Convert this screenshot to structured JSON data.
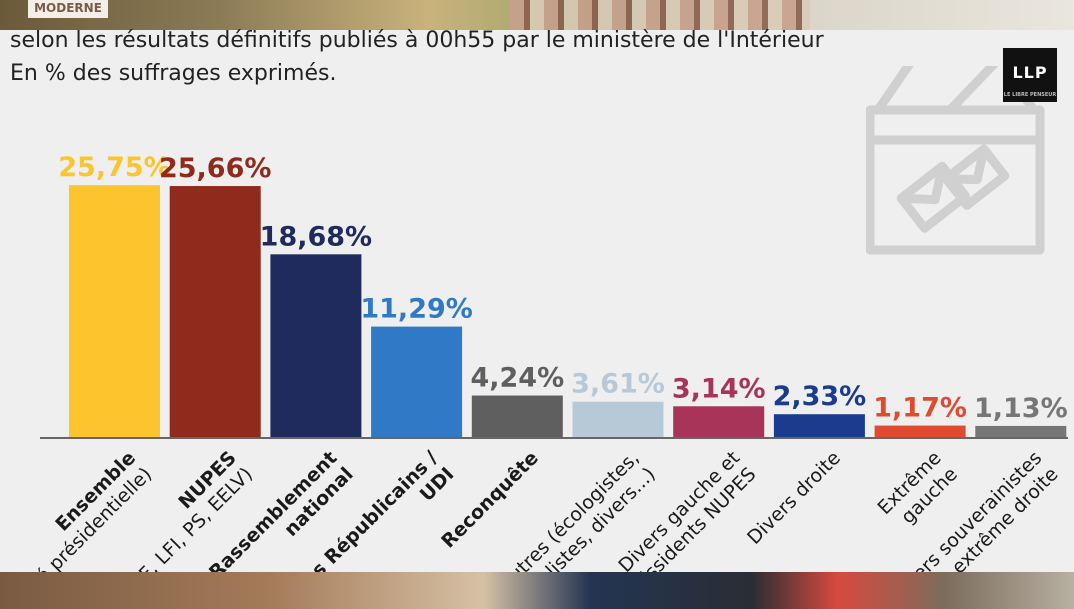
{
  "header": {
    "line1": "selon les résultats définitifs publiés à 00h55 par le ministère de l'Intérieur",
    "line2": "En % des suffrages exprimés.",
    "background_sign": "MODERNE"
  },
  "logo": {
    "text": "LLP",
    "subtext": "LE LIBRE PENSEUR"
  },
  "chart_data": {
    "type": "bar",
    "title": "",
    "xlabel": "",
    "ylabel": "",
    "ylim": [
      0,
      27
    ],
    "grid": false,
    "categories": [
      "Ensemble (Majorité présidentielle)",
      "NUPES (PCF, LFI, PS, EELV)",
      "Rassemblement national",
      "Les Républicains / UDI",
      "Reconquête",
      "Autres (écologistes, régionalistes, divers...)",
      "Divers gauche et dissidents NUPES",
      "Divers droite",
      "Extrême gauche",
      "Divers souverainistes et extrême droite"
    ],
    "values": [
      25.75,
      25.66,
      18.68,
      11.29,
      4.24,
      3.61,
      3.14,
      2.33,
      1.17,
      1.13
    ],
    "value_labels": [
      "25,75%",
      "25,66%",
      "18,68%",
      "11,29%",
      "4,24%",
      "3,61%",
      "3,14%",
      "2,33%",
      "1,17%",
      "1,13%"
    ],
    "colors": [
      "#fcc42d",
      "#8f2a1c",
      "#1f2b5c",
      "#2f79c6",
      "#5f5f5f",
      "#b7c9d7",
      "#a8345a",
      "#1b3b8e",
      "#e04a30",
      "#767676"
    ],
    "tick_label_lines": [
      [
        "Ensemble",
        "(Majorité présidentielle)"
      ],
      [
        "NUPES",
        "(PCF, LFI, PS, EELV)"
      ],
      [
        "Rassemblement",
        "national"
      ],
      [
        "Les Républicains /",
        "UDI"
      ],
      [
        "Reconquête"
      ],
      [
        "Autres (écologistes,",
        "régionalistes, divers...)"
      ],
      [
        "Divers gauche et",
        "dissidents NUPES"
      ],
      [
        "Divers droite"
      ],
      [
        "Extrême",
        "gauche"
      ],
      [
        "Divers souverainistes",
        "et extrême droite"
      ]
    ],
    "tick_label_bold": [
      [
        true,
        false
      ],
      [
        true,
        false
      ],
      [
        true,
        true
      ],
      [
        true,
        true
      ],
      [
        true
      ],
      [
        false,
        false
      ],
      [
        false,
        false
      ],
      [
        false
      ],
      [
        false,
        false
      ],
      [
        false,
        false
      ]
    ]
  }
}
